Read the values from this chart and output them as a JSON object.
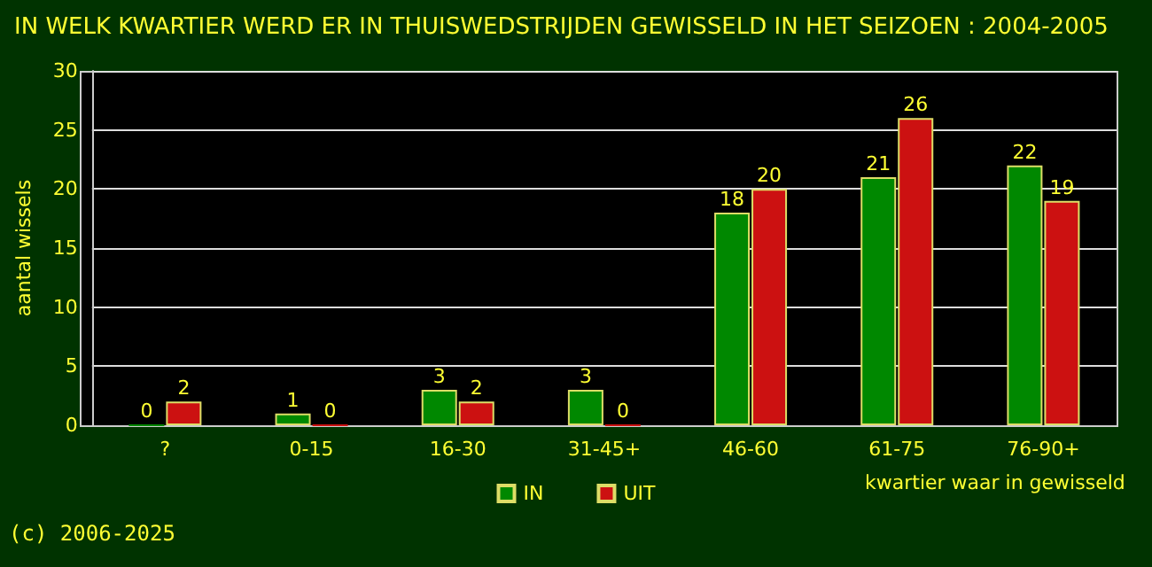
{
  "chart_data": {
    "type": "bar",
    "title": "IN WELK KWARTIER WERD ER IN THUISWEDSTRIJDEN GEWISSELD IN HET SEIZOEN : 2004-2005",
    "xlabel": "kwartier waar in gewisseld",
    "ylabel": "aantal wissels",
    "categories": [
      "?",
      "0-15",
      "16-30",
      "31-45+",
      "46-60",
      "61-75",
      "76-90+"
    ],
    "series": [
      {
        "name": "IN",
        "color": "#008800",
        "values": [
          0,
          1,
          3,
          3,
          18,
          21,
          22
        ]
      },
      {
        "name": "UIT",
        "color": "#cc1111",
        "values": [
          2,
          0,
          2,
          0,
          20,
          26,
          19
        ]
      }
    ],
    "ylim": [
      0,
      30
    ],
    "yticks": [
      0,
      5,
      10,
      15,
      20,
      25,
      30
    ],
    "grid": "y",
    "legend": "bottom",
    "data_labels": true,
    "annotations": [
      "(c) 2006-2025"
    ]
  }
}
